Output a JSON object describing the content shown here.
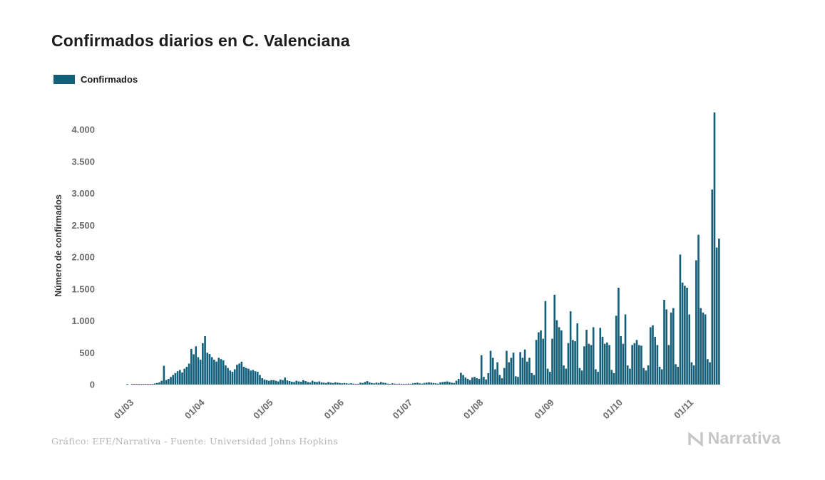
{
  "page": {
    "title": "Confirmados diarios en C. Valenciana",
    "footer_credit": "Gráfico: EFE/Narrativa - Fuente: Universidad Johns Hopkins",
    "brand": "Narrativa"
  },
  "legend": {
    "label": "Confirmados",
    "color": "#14607A"
  },
  "chart_data": {
    "type": "bar",
    "title": "Confirmados diarios en C. Valenciana",
    "xlabel": "",
    "ylabel": "Número de confirmados",
    "ylim": [
      0,
      4300
    ],
    "grid": false,
    "legend_position": "top-left",
    "bar_color": "#14607A",
    "y_ticks": [
      0,
      500,
      1000,
      1500,
      2000,
      2500,
      3000,
      3500,
      4000
    ],
    "y_tick_labels": [
      "0",
      "500",
      "1.000",
      "1.500",
      "2.000",
      "2.500",
      "3.000",
      "3.500",
      "4.000"
    ],
    "x_tick_labels": [
      "01/03",
      "01/04",
      "01/05",
      "01/06",
      "01/07",
      "01/08",
      "01/09",
      "01/10",
      "01/11"
    ],
    "x_tick_indices": [
      13,
      44,
      74,
      105,
      135,
      166,
      197,
      227,
      258
    ],
    "series": [
      {
        "name": "Confirmados",
        "color": "#14607A",
        "values": [
          0,
          0,
          0,
          0,
          0,
          0,
          0,
          0,
          0,
          0,
          1,
          0,
          2,
          2,
          1,
          3,
          2,
          4,
          3,
          6,
          8,
          12,
          18,
          25,
          35,
          60,
          295,
          70,
          90,
          120,
          150,
          180,
          210,
          230,
          190,
          250,
          280,
          330,
          560,
          475,
          600,
          430,
          390,
          650,
          760,
          500,
          480,
          430,
          390,
          360,
          420,
          400,
          380,
          300,
          260,
          220,
          200,
          240,
          310,
          330,
          360,
          280,
          260,
          250,
          220,
          230,
          210,
          200,
          150,
          100,
          80,
          70,
          60,
          70,
          70,
          60,
          50,
          80,
          70,
          110,
          65,
          55,
          45,
          40,
          60,
          50,
          45,
          70,
          55,
          40,
          35,
          60,
          45,
          40,
          50,
          35,
          30,
          25,
          40,
          30,
          25,
          35,
          30,
          25,
          20,
          25,
          20,
          15,
          20,
          15,
          10,
          12,
          30,
          25,
          40,
          55,
          35,
          25,
          20,
          30,
          25,
          40,
          30,
          25,
          15,
          10,
          20,
          15,
          10,
          15,
          12,
          10,
          8,
          15,
          12,
          20,
          25,
          30,
          20,
          15,
          25,
          30,
          35,
          30,
          25,
          20,
          15,
          35,
          40,
          45,
          50,
          40,
          30,
          25,
          60,
          90,
          185,
          150,
          110,
          90,
          70,
          110,
          120,
          100,
          90,
          460,
          120,
          80,
          180,
          530,
          420,
          240,
          350,
          150,
          100,
          260,
          530,
          350,
          420,
          500,
          130,
          120,
          510,
          420,
          550,
          360,
          420,
          180,
          150,
          700,
          820,
          850,
          720,
          1310,
          250,
          200,
          720,
          1410,
          1010,
          900,
          850,
          300,
          250,
          650,
          1150,
          700,
          680,
          960,
          260,
          220,
          600,
          860,
          640,
          620,
          900,
          240,
          200,
          890,
          750,
          640,
          660,
          620,
          230,
          180,
          1080,
          1520,
          760,
          640,
          1100,
          300,
          250,
          620,
          650,
          700,
          620,
          610,
          260,
          220,
          300,
          900,
          930,
          750,
          620,
          280,
          240,
          1330,
          1180,
          620,
          1130,
          1200,
          320,
          280,
          2040,
          1600,
          1550,
          1520,
          1100,
          350,
          300,
          1950,
          2350,
          1200,
          1130,
          1100,
          400,
          350,
          3060,
          4270,
          2150,
          2290
        ]
      }
    ]
  }
}
